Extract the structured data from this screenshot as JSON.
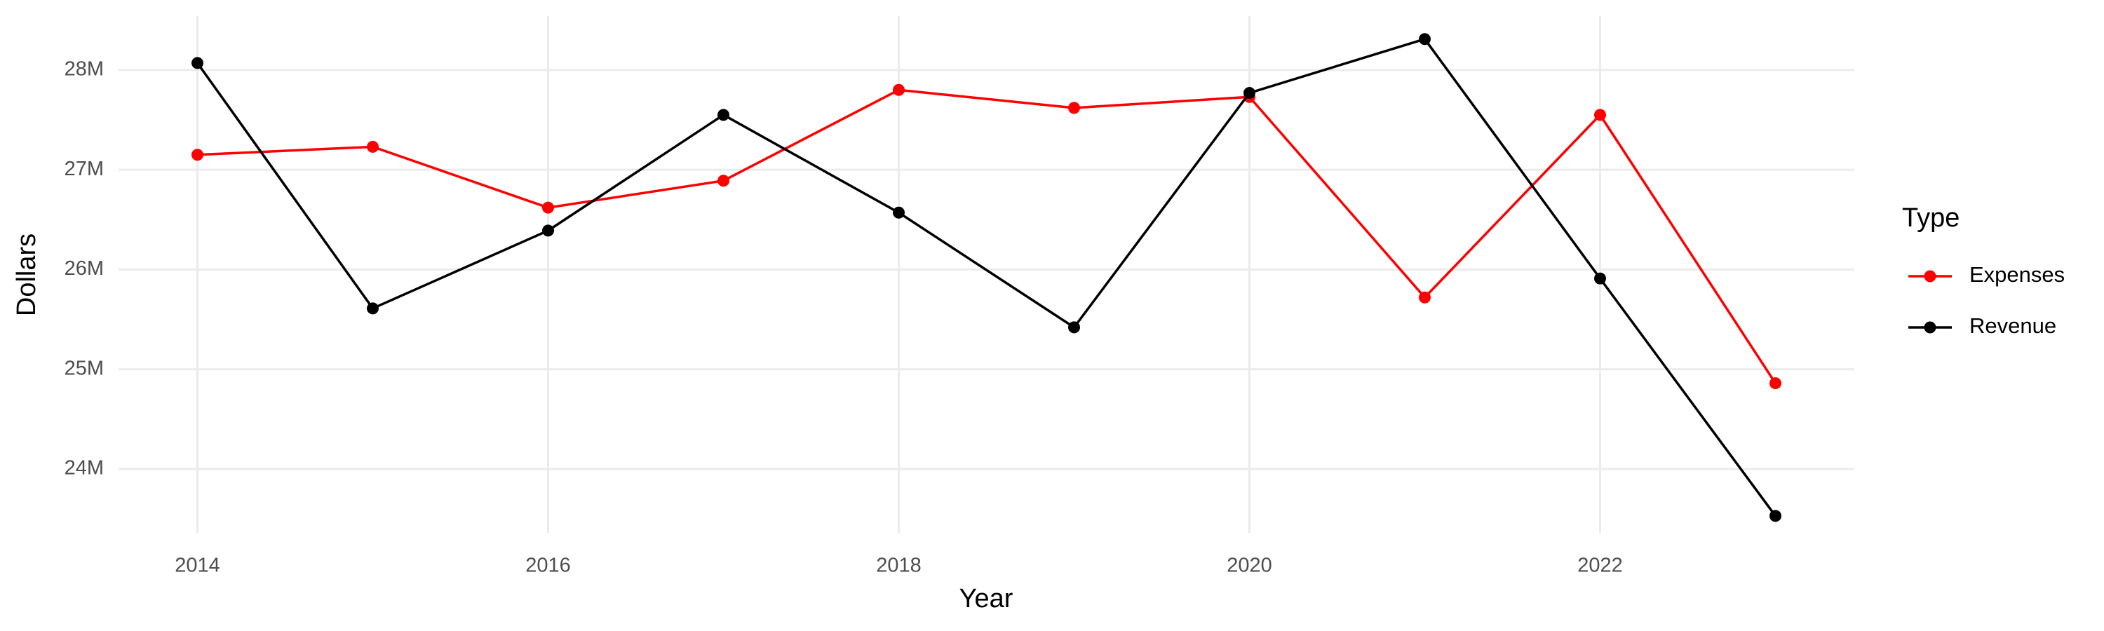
{
  "chart_data": {
    "type": "line",
    "x_label": "Year",
    "y_label": "Dollars",
    "legend_title": "Type",
    "legend_position": "right",
    "grid": true,
    "x": [
      2014,
      2015,
      2016,
      2017,
      2018,
      2019,
      2020,
      2021,
      2022,
      2023
    ],
    "series": [
      {
        "name": "Expenses",
        "color": "#ff0000",
        "values": [
          27150000,
          27230000,
          26620000,
          26890000,
          27800000,
          27620000,
          27730000,
          25720000,
          27550000,
          24860000
        ]
      },
      {
        "name": "Revenue",
        "color": "#000000",
        "values": [
          28070000,
          25610000,
          26390000,
          27550000,
          26570000,
          25420000,
          27770000,
          28310000,
          25910000,
          23530000
        ]
      }
    ],
    "xlim": [
      2013.55,
      2023.45
    ],
    "xticks": [
      2014,
      2016,
      2018,
      2020,
      2022
    ],
    "ylim": [
      23360000,
      28540000
    ],
    "yticks": [
      {
        "value": 24000000,
        "label": "24M"
      },
      {
        "value": 25000000,
        "label": "25M"
      },
      {
        "value": 26000000,
        "label": "26M"
      },
      {
        "value": 27000000,
        "label": "27M"
      },
      {
        "value": 28000000,
        "label": "28M"
      }
    ]
  }
}
